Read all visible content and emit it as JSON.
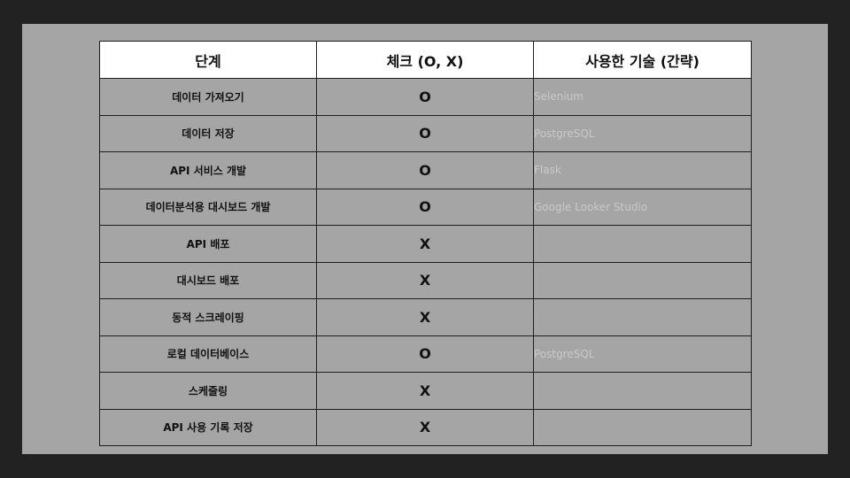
{
  "table": {
    "headers": [
      "단계",
      "체크 (O, X)",
      "사용한 기술 (간략)"
    ],
    "rows": [
      {
        "stage": "데이터 가져오기",
        "check": "O",
        "tech": "Selenium"
      },
      {
        "stage": "데이터 저장",
        "check": "O",
        "tech": "PostgreSQL"
      },
      {
        "stage": "API 서비스 개발",
        "check": "O",
        "tech": "Flask"
      },
      {
        "stage": "데이터분석용 대시보드 개발",
        "check": "O",
        "tech": "Google Looker Studio"
      },
      {
        "stage": "API 배포",
        "check": "X",
        "tech": ""
      },
      {
        "stage": "대시보드 배포",
        "check": "X",
        "tech": ""
      },
      {
        "stage": "동적 스크레이핑",
        "check": "X",
        "tech": ""
      },
      {
        "stage": "로컬 데이터베이스",
        "check": "O",
        "tech": "PostgreSQL"
      },
      {
        "stage": "스케줄링",
        "check": "X",
        "tech": ""
      },
      {
        "stage": "API 사용 기록 저장",
        "check": "X",
        "tech": ""
      }
    ]
  }
}
